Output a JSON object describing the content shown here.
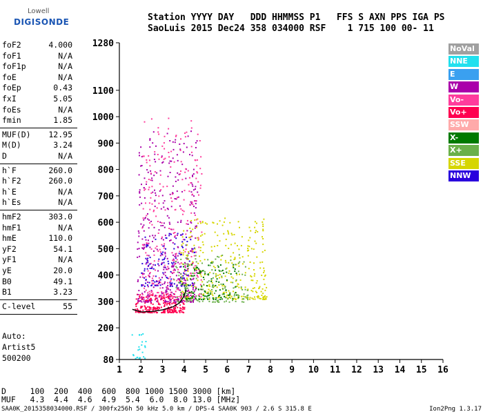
{
  "logo": {
    "top": "Lowell",
    "bottom": "DIGISONDE"
  },
  "header": {
    "line1": "Station YYYY DAY   DDD HHMMSS P1   FFS S AXN PPS IGA PS",
    "line2": "SaoLuis 2015 Dec24 358 034000 RSF    1 715 100 00- 11"
  },
  "params": [
    {
      "name": "foF2",
      "value": "4.000"
    },
    {
      "name": "foF1",
      "value": "N/A"
    },
    {
      "name": "foF1p",
      "value": "N/A"
    },
    {
      "name": "foE",
      "value": "N/A"
    },
    {
      "name": "foEp",
      "value": "0.43"
    },
    {
      "name": "fxI",
      "value": "5.05"
    },
    {
      "name": "foEs",
      "value": "N/A"
    },
    {
      "name": "fmin",
      "value": "1.85"
    },
    {
      "name": "MUF(D)",
      "value": "12.95"
    },
    {
      "name": "M(D)",
      "value": "3.24"
    },
    {
      "name": "D",
      "value": "N/A"
    },
    {
      "name": "h`F",
      "value": "260.0"
    },
    {
      "name": "h`F2",
      "value": "260.0"
    },
    {
      "name": "h`E",
      "value": "N/A"
    },
    {
      "name": "h`Es",
      "value": "N/A"
    },
    {
      "name": "hmF2",
      "value": "303.0"
    },
    {
      "name": "hmF1",
      "value": "N/A"
    },
    {
      "name": "hmE",
      "value": "110.0"
    },
    {
      "name": "yF2",
      "value": "54.1"
    },
    {
      "name": "yF1",
      "value": "N/A"
    },
    {
      "name": "yE",
      "value": "20.0"
    },
    {
      "name": "B0",
      "value": "49.1"
    },
    {
      "name": "B1",
      "value": "3.23"
    },
    {
      "name": "C-level",
      "value": "55"
    }
  ],
  "auto": {
    "l1": "Auto:",
    "l2": "Artist5",
    "l3": "500200"
  },
  "legend": [
    {
      "label": "NoVal",
      "color": "#a0a0a0"
    },
    {
      "label": "NNE",
      "color": "#22e0ee"
    },
    {
      "label": "E",
      "color": "#3aa0f0"
    },
    {
      "label": "W",
      "color": "#aa00aa"
    },
    {
      "label": "Vo-",
      "color": "#ff3c9c"
    },
    {
      "label": "Vo+",
      "color": "#ff0050"
    },
    {
      "label": "SSW",
      "color": "#ffaaaa"
    },
    {
      "label": "X-",
      "color": "#007a00"
    },
    {
      "label": "X+",
      "color": "#6ab04a"
    },
    {
      "label": "SSE",
      "color": "#d6d600"
    },
    {
      "label": "NNW",
      "color": "#2a00dd"
    }
  ],
  "chart_data": {
    "type": "scatter",
    "xlim": [
      1,
      16
    ],
    "ylim": [
      80,
      1280
    ],
    "xticks": [
      1,
      2,
      3,
      4,
      5,
      6,
      7,
      8,
      9,
      10,
      11,
      12,
      13,
      14,
      15,
      16
    ],
    "yticks": [
      80,
      200,
      300,
      400,
      500,
      600,
      700,
      800,
      900,
      1000,
      1100,
      1280
    ],
    "grid": false,
    "trace": {
      "color": "#000",
      "points": [
        [
          1.6,
          270
        ],
        [
          2.0,
          260
        ],
        [
          2.5,
          262
        ],
        [
          3.0,
          268
        ],
        [
          3.5,
          280
        ],
        [
          3.8,
          295
        ],
        [
          4.0,
          320
        ],
        [
          4.1,
          345
        ]
      ]
    },
    "clusters": [
      {
        "color": "#ff0050",
        "fx": [
          1.7,
          4.0
        ],
        "hy": [
          260,
          330
        ],
        "n": 260
      },
      {
        "color": "#aa00aa",
        "fx": [
          1.8,
          4.6
        ],
        "hy": [
          300,
          950
        ],
        "n": 420
      },
      {
        "color": "#ff3c9c",
        "fx": [
          2.0,
          4.8
        ],
        "hy": [
          320,
          1000
        ],
        "n": 300
      },
      {
        "color": "#2a00dd",
        "fx": [
          2.0,
          4.5
        ],
        "hy": [
          360,
          560
        ],
        "n": 120
      },
      {
        "color": "#d6d600",
        "fx": [
          3.8,
          7.8
        ],
        "hy": [
          310,
          620
        ],
        "n": 320
      },
      {
        "color": "#6ab04a",
        "fx": [
          3.5,
          7.0
        ],
        "hy": [
          300,
          480
        ],
        "n": 160
      },
      {
        "color": "#007a00",
        "fx": [
          3.8,
          6.5
        ],
        "hy": [
          310,
          450
        ],
        "n": 110
      },
      {
        "color": "#22e0ee",
        "fx": [
          1.5,
          2.2
        ],
        "hy": [
          85,
          180
        ],
        "n": 25
      }
    ]
  },
  "bottom": {
    "row1": "D     100  200  400  600  800 1000 1500 3000 [km]",
    "row2": "MUF   4.3  4.4  4.6  4.9  5.4  6.0  8.0 13.0 [MHz]"
  },
  "footer": "SAA0K_2015358034000.RSF / 300fx256h 50 kHz 5.0 km / DPS-4 SAA0K 903 / 2.6 S 315.8 E",
  "version": "Ion2Png 1.3.17"
}
